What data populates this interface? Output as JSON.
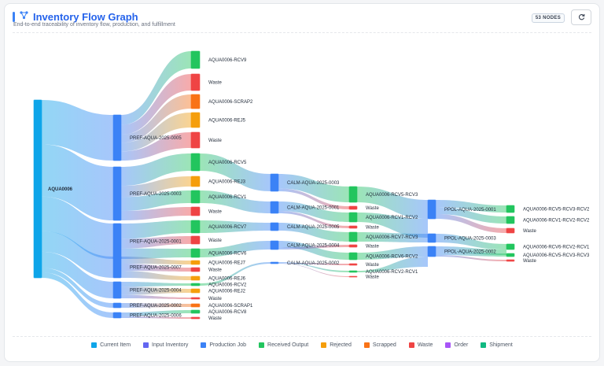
{
  "header": {
    "title": "Inventory Flow Graph",
    "subtitle": "End-to-end traceability of inventory flow, production, and fulfillment",
    "node_count": "53 NODES",
    "accent": "#3b82f6",
    "title_icon": "graph-icon",
    "refresh_icon": "refresh-icon"
  },
  "legend": [
    {
      "label": "Current Item",
      "color": "#0ea5e9"
    },
    {
      "label": "Input Inventory",
      "color": "#6366f1"
    },
    {
      "label": "Production Job",
      "color": "#3b82f6"
    },
    {
      "label": "Received Output",
      "color": "#22c55e"
    },
    {
      "label": "Rejected",
      "color": "#f59e0b"
    },
    {
      "label": "Scrapped",
      "color": "#f97316"
    },
    {
      "label": "Waste",
      "color": "#ef4444"
    },
    {
      "label": "Order",
      "color": "#a855f7"
    },
    {
      "label": "Shipment",
      "color": "#10b981"
    }
  ],
  "graph": {
    "nodes": [
      {
        "id": "AQUA0006",
        "label": "AQUA0006",
        "cat": "current"
      },
      {
        "id": "J5",
        "label": "PREF-AQUA-2025-0005",
        "cat": "job"
      },
      {
        "id": "J3",
        "label": "PREF-AQUA-2025-0003",
        "cat": "job"
      },
      {
        "id": "J1",
        "label": "PREF-AQUA-2025-0001",
        "cat": "job"
      },
      {
        "id": "J7",
        "label": "PREF-AQUA-2025-0007",
        "cat": "job"
      },
      {
        "id": "J4",
        "label": "PREF-AQUA-2025-0004",
        "cat": "job"
      },
      {
        "id": "J2",
        "label": "PREF-AQUA-2025-0002",
        "cat": "job"
      },
      {
        "id": "J6",
        "label": "PREF-AQUA-2025-0006",
        "cat": "job"
      },
      {
        "id": "RCV9",
        "label": "AQUA0006-RCV9",
        "cat": "received"
      },
      {
        "id": "W1",
        "label": "Waste",
        "cat": "waste"
      },
      {
        "id": "SCR2",
        "label": "AQUA0006-SCRAP2",
        "cat": "scrapped"
      },
      {
        "id": "REJ5",
        "label": "AQUA0006-REJ5",
        "cat": "rejected"
      },
      {
        "id": "W2",
        "label": "Waste",
        "cat": "waste"
      },
      {
        "id": "RCV5",
        "label": "AQUA0006-RCV5",
        "cat": "received"
      },
      {
        "id": "REJ3",
        "label": "AQUA0006-REJ3",
        "cat": "rejected"
      },
      {
        "id": "RCV1",
        "label": "AQUA0006-RCV1",
        "cat": "received"
      },
      {
        "id": "W3",
        "label": "Waste",
        "cat": "waste"
      },
      {
        "id": "RCV7",
        "label": "AQUA0006-RCV7",
        "cat": "received"
      },
      {
        "id": "W4",
        "label": "Waste",
        "cat": "waste"
      },
      {
        "id": "RCV6",
        "label": "AQUA0006-RCV6",
        "cat": "received"
      },
      {
        "id": "REJ7",
        "label": "AQUA0006-REJ7",
        "cat": "rejected"
      },
      {
        "id": "W5",
        "label": "Waste",
        "cat": "waste"
      },
      {
        "id": "REJ6",
        "label": "AQUA0006-REJ6",
        "cat": "rejected"
      },
      {
        "id": "RCV2",
        "label": "AQUA0006-RCV2",
        "cat": "received"
      },
      {
        "id": "REJ2",
        "label": "AQUA0006-REJ2",
        "cat": "rejected"
      },
      {
        "id": "W6",
        "label": "Waste",
        "cat": "waste"
      },
      {
        "id": "SCR1",
        "label": "AQUA0006-SCRAP1",
        "cat": "scrapped"
      },
      {
        "id": "RCV8",
        "label": "AQUA0006-RCV8",
        "cat": "received"
      },
      {
        "id": "W7",
        "label": "Waste",
        "cat": "waste"
      },
      {
        "id": "C3",
        "label": "CALM-AQUA-2025-0003",
        "cat": "job"
      },
      {
        "id": "C1",
        "label": "CALM-AQUA-2025-0001",
        "cat": "job"
      },
      {
        "id": "C5",
        "label": "CALM-AQUA-2025-0005",
        "cat": "job"
      },
      {
        "id": "C4",
        "label": "CALM-AQUA-2025-0004",
        "cat": "job"
      },
      {
        "id": "C2",
        "label": "CALM-AQUA-2025-0002",
        "cat": "job"
      },
      {
        "id": "R5R3",
        "label": "AQUA0006-RCV5-RCV3",
        "cat": "received"
      },
      {
        "id": "W8",
        "label": "Waste",
        "cat": "waste"
      },
      {
        "id": "R1R2",
        "label": "AQUA0006-RCV1-RCV2",
        "cat": "received"
      },
      {
        "id": "W9",
        "label": "Waste",
        "cat": "waste"
      },
      {
        "id": "R7R3",
        "label": "AQUA0006-RCV7-RCV3",
        "cat": "received"
      },
      {
        "id": "W10",
        "label": "Waste",
        "cat": "waste"
      },
      {
        "id": "R6R2",
        "label": "AQUA0006-RCV6-RCV2",
        "cat": "received"
      },
      {
        "id": "W11",
        "label": "Waste",
        "cat": "waste"
      },
      {
        "id": "R2R1",
        "label": "AQUA0006-RCV2-RCV1",
        "cat": "received"
      },
      {
        "id": "W12",
        "label": "Waste",
        "cat": "waste"
      },
      {
        "id": "P1",
        "label": "PPOL-AQUA-2025-0001",
        "cat": "job"
      },
      {
        "id": "P3",
        "label": "PPOL-AQUA-2025-0003",
        "cat": "job"
      },
      {
        "id": "P2",
        "label": "PPOL-AQUA-2025-0002",
        "cat": "job"
      },
      {
        "id": "F1",
        "label": "AQUA0006-RCV5-RCV3-RCV2",
        "cat": "received"
      },
      {
        "id": "F2",
        "label": "AQUA0006-RCV1-RCV2-RCV2",
        "cat": "received"
      },
      {
        "id": "W13",
        "label": "Waste",
        "cat": "waste"
      },
      {
        "id": "F3",
        "label": "AQUA0006-RCV6-RCV2-RCV1",
        "cat": "received"
      },
      {
        "id": "F4",
        "label": "AQUA0006-RCV5-RCV3-RCV3",
        "cat": "received"
      },
      {
        "id": "W14",
        "label": "Waste",
        "cat": "waste"
      }
    ],
    "links": [
      [
        "AQUA0006",
        "J5"
      ],
      [
        "AQUA0006",
        "J3"
      ],
      [
        "AQUA0006",
        "J1"
      ],
      [
        "AQUA0006",
        "J7"
      ],
      [
        "AQUA0006",
        "J4"
      ],
      [
        "AQUA0006",
        "J2"
      ],
      [
        "AQUA0006",
        "J6"
      ],
      [
        "J5",
        "RCV9"
      ],
      [
        "J5",
        "W1"
      ],
      [
        "J5",
        "SCR2"
      ],
      [
        "J5",
        "REJ5"
      ],
      [
        "J5",
        "W2"
      ],
      [
        "J3",
        "RCV5"
      ],
      [
        "J3",
        "REJ3"
      ],
      [
        "J3",
        "RCV1"
      ],
      [
        "J3",
        "W3"
      ],
      [
        "J1",
        "RCV7"
      ],
      [
        "J1",
        "W4"
      ],
      [
        "J1",
        "RCV6"
      ],
      [
        "J7",
        "REJ7"
      ],
      [
        "J7",
        "W5"
      ],
      [
        "J7",
        "REJ6"
      ],
      [
        "J4",
        "RCV2"
      ],
      [
        "J4",
        "REJ2"
      ],
      [
        "J4",
        "W6"
      ],
      [
        "J2",
        "SCR1"
      ],
      [
        "J6",
        "RCV8"
      ],
      [
        "J6",
        "W7"
      ],
      [
        "RCV5",
        "C3"
      ],
      [
        "RCV1",
        "C1"
      ],
      [
        "RCV7",
        "C5"
      ],
      [
        "RCV6",
        "C4"
      ],
      [
        "RCV2",
        "C2"
      ],
      [
        "C3",
        "R5R3"
      ],
      [
        "C3",
        "W8"
      ],
      [
        "C1",
        "R1R2"
      ],
      [
        "C1",
        "W9"
      ],
      [
        "C5",
        "R7R3"
      ],
      [
        "C4",
        "R6R2"
      ],
      [
        "C4",
        "W10"
      ],
      [
        "C2",
        "R2R1"
      ],
      [
        "C2",
        "W11"
      ],
      [
        "C2",
        "W12"
      ],
      [
        "R5R3",
        "P1"
      ],
      [
        "R1R2",
        "P1"
      ],
      [
        "R7R3",
        "P3"
      ],
      [
        "R6R2",
        "P2"
      ],
      [
        "R2R1",
        "P2"
      ],
      [
        "P1",
        "F1"
      ],
      [
        "P1",
        "F2"
      ],
      [
        "P1",
        "W13"
      ],
      [
        "P3",
        "F3"
      ],
      [
        "P2",
        "F3"
      ],
      [
        "P2",
        "F4"
      ],
      [
        "P2",
        "W14"
      ]
    ]
  }
}
